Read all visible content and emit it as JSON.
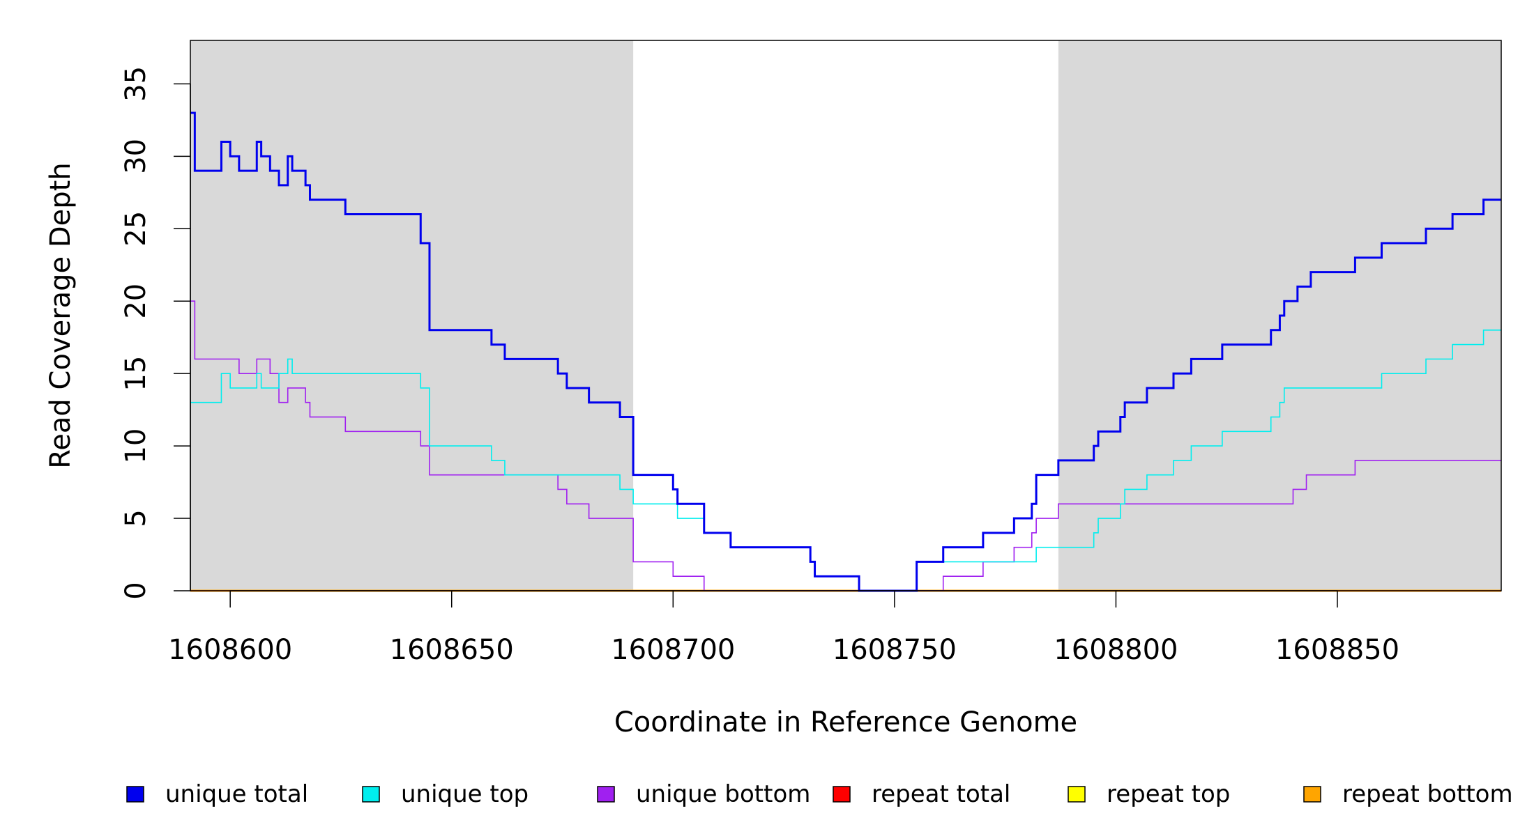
{
  "chart_data": {
    "type": "line",
    "step": true,
    "xlabel": "Coordinate in Reference Genome",
    "ylabel": "Read Coverage Depth",
    "xlim": [
      1608591,
      1608887
    ],
    "ylim": [
      0,
      38
    ],
    "x_ticks": [
      1608600,
      1608650,
      1608700,
      1608750,
      1608800,
      1608850
    ],
    "x_tick_labels": [
      "1608600",
      "1608650",
      "1608700",
      "1608750",
      "1608800",
      "1608850"
    ],
    "y_ticks": [
      0,
      5,
      10,
      15,
      20,
      25,
      30,
      35
    ],
    "y_tick_labels": [
      "0",
      "5",
      "10",
      "15",
      "20",
      "25",
      "30",
      "35"
    ],
    "shaded_regions": [
      {
        "x": [
          1608591,
          1608691
        ],
        "color": "#d9d9d9"
      },
      {
        "x": [
          1608787,
          1608887
        ],
        "color": "#d9d9d9"
      }
    ],
    "legend_position": "bottom",
    "series": [
      {
        "name": "unique total",
        "color": "#0000ee",
        "points": [
          [
            1608591,
            33
          ],
          [
            1608592,
            29
          ],
          [
            1608598,
            31
          ],
          [
            1608600,
            30
          ],
          [
            1608602,
            29
          ],
          [
            1608606,
            31
          ],
          [
            1608607,
            30
          ],
          [
            1608609,
            29
          ],
          [
            1608611,
            28
          ],
          [
            1608613,
            30
          ],
          [
            1608614,
            29
          ],
          [
            1608617,
            28
          ],
          [
            1608618,
            27
          ],
          [
            1608626,
            26
          ],
          [
            1608643,
            24
          ],
          [
            1608645,
            18
          ],
          [
            1608659,
            17
          ],
          [
            1608662,
            16
          ],
          [
            1608674,
            15
          ],
          [
            1608676,
            14
          ],
          [
            1608681,
            13
          ],
          [
            1608688,
            12
          ],
          [
            1608691,
            8
          ],
          [
            1608700,
            7
          ],
          [
            1608701,
            6
          ],
          [
            1608707,
            4
          ],
          [
            1608713,
            3
          ],
          [
            1608731,
            2
          ],
          [
            1608732,
            1
          ],
          [
            1608742,
            0
          ],
          [
            1608755,
            2
          ],
          [
            1608761,
            3
          ],
          [
            1608770,
            4
          ],
          [
            1608777,
            5
          ],
          [
            1608781,
            6
          ],
          [
            1608782,
            8
          ],
          [
            1608787,
            9
          ],
          [
            1608795,
            10
          ],
          [
            1608796,
            11
          ],
          [
            1608801,
            12
          ],
          [
            1608802,
            13
          ],
          [
            1608807,
            14
          ],
          [
            1608813,
            15
          ],
          [
            1608817,
            16
          ],
          [
            1608824,
            17
          ],
          [
            1608835,
            18
          ],
          [
            1608837,
            19
          ],
          [
            1608838,
            20
          ],
          [
            1608841,
            21
          ],
          [
            1608844,
            22
          ],
          [
            1608854,
            23
          ],
          [
            1608860,
            24
          ],
          [
            1608870,
            25
          ],
          [
            1608876,
            26
          ],
          [
            1608883,
            27
          ],
          [
            1608887,
            27
          ]
        ]
      },
      {
        "name": "unique top",
        "color": "#00eeee",
        "points": [
          [
            1608591,
            13
          ],
          [
            1608598,
            15
          ],
          [
            1608600,
            14
          ],
          [
            1608606,
            15
          ],
          [
            1608607,
            14
          ],
          [
            1608611,
            15
          ],
          [
            1608613,
            16
          ],
          [
            1608614,
            15
          ],
          [
            1608643,
            14
          ],
          [
            1608645,
            10
          ],
          [
            1608659,
            9
          ],
          [
            1608662,
            8
          ],
          [
            1608688,
            7
          ],
          [
            1608691,
            6
          ],
          [
            1608701,
            5
          ],
          [
            1608707,
            4
          ],
          [
            1608713,
            3
          ],
          [
            1608731,
            2
          ],
          [
            1608732,
            1
          ],
          [
            1608742,
            0
          ],
          [
            1608755,
            2
          ],
          [
            1608782,
            3
          ],
          [
            1608795,
            4
          ],
          [
            1608796,
            5
          ],
          [
            1608801,
            6
          ],
          [
            1608802,
            7
          ],
          [
            1608807,
            8
          ],
          [
            1608813,
            9
          ],
          [
            1608817,
            10
          ],
          [
            1608824,
            11
          ],
          [
            1608835,
            12
          ],
          [
            1608837,
            13
          ],
          [
            1608838,
            14
          ],
          [
            1608860,
            15
          ],
          [
            1608870,
            16
          ],
          [
            1608876,
            17
          ],
          [
            1608883,
            18
          ],
          [
            1608887,
            18
          ]
        ]
      },
      {
        "name": "unique bottom",
        "color": "#a020f0",
        "points": [
          [
            1608591,
            20
          ],
          [
            1608592,
            16
          ],
          [
            1608602,
            15
          ],
          [
            1608606,
            16
          ],
          [
            1608609,
            15
          ],
          [
            1608611,
            13
          ],
          [
            1608613,
            14
          ],
          [
            1608617,
            13
          ],
          [
            1608618,
            12
          ],
          [
            1608626,
            11
          ],
          [
            1608643,
            10
          ],
          [
            1608645,
            8
          ],
          [
            1608674,
            7
          ],
          [
            1608676,
            6
          ],
          [
            1608681,
            5
          ],
          [
            1608691,
            2
          ],
          [
            1608700,
            1
          ],
          [
            1608707,
            0
          ],
          [
            1608761,
            1
          ],
          [
            1608770,
            2
          ],
          [
            1608777,
            3
          ],
          [
            1608781,
            4
          ],
          [
            1608782,
            5
          ],
          [
            1608787,
            6
          ],
          [
            1608840,
            7
          ],
          [
            1608843,
            8
          ],
          [
            1608854,
            9
          ],
          [
            1608887,
            9
          ]
        ]
      },
      {
        "name": "repeat total",
        "color": "#ff0000",
        "points": [
          [
            1608591,
            0
          ],
          [
            1608887,
            0
          ]
        ]
      },
      {
        "name": "repeat top",
        "color": "#ffff00",
        "points": [
          [
            1608591,
            0
          ],
          [
            1608887,
            0
          ]
        ]
      },
      {
        "name": "repeat bottom",
        "color": "#ffa500",
        "points": [
          [
            1608591,
            0
          ],
          [
            1608887,
            0
          ]
        ]
      }
    ]
  }
}
